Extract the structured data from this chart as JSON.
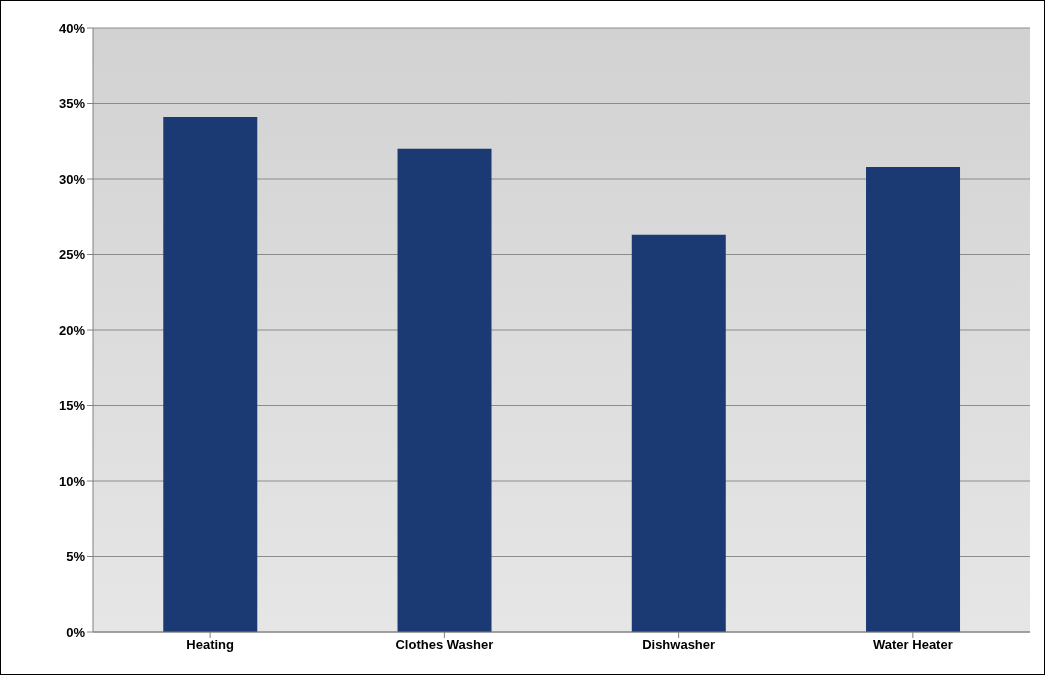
{
  "chart_data": {
    "type": "bar",
    "categories": [
      "Heating",
      "Clothes Washer",
      "Dishwasher",
      "Water Heater"
    ],
    "values": [
      34.1,
      32.0,
      26.3,
      30.8
    ],
    "color": "#1b3a73",
    "ylim": [
      0,
      40
    ],
    "yticks": [
      {
        "value": 0,
        "label": "0%"
      },
      {
        "value": 5,
        "label": "5%"
      },
      {
        "value": 10,
        "label": "10%"
      },
      {
        "value": 15,
        "label": "15%"
      },
      {
        "value": 20,
        "label": "20%"
      },
      {
        "value": 25,
        "label": "25%"
      },
      {
        "value": 30,
        "label": "30%"
      },
      {
        "value": 35,
        "label": "35%"
      },
      {
        "value": 40,
        "label": "40%"
      }
    ],
    "grid": "y"
  }
}
